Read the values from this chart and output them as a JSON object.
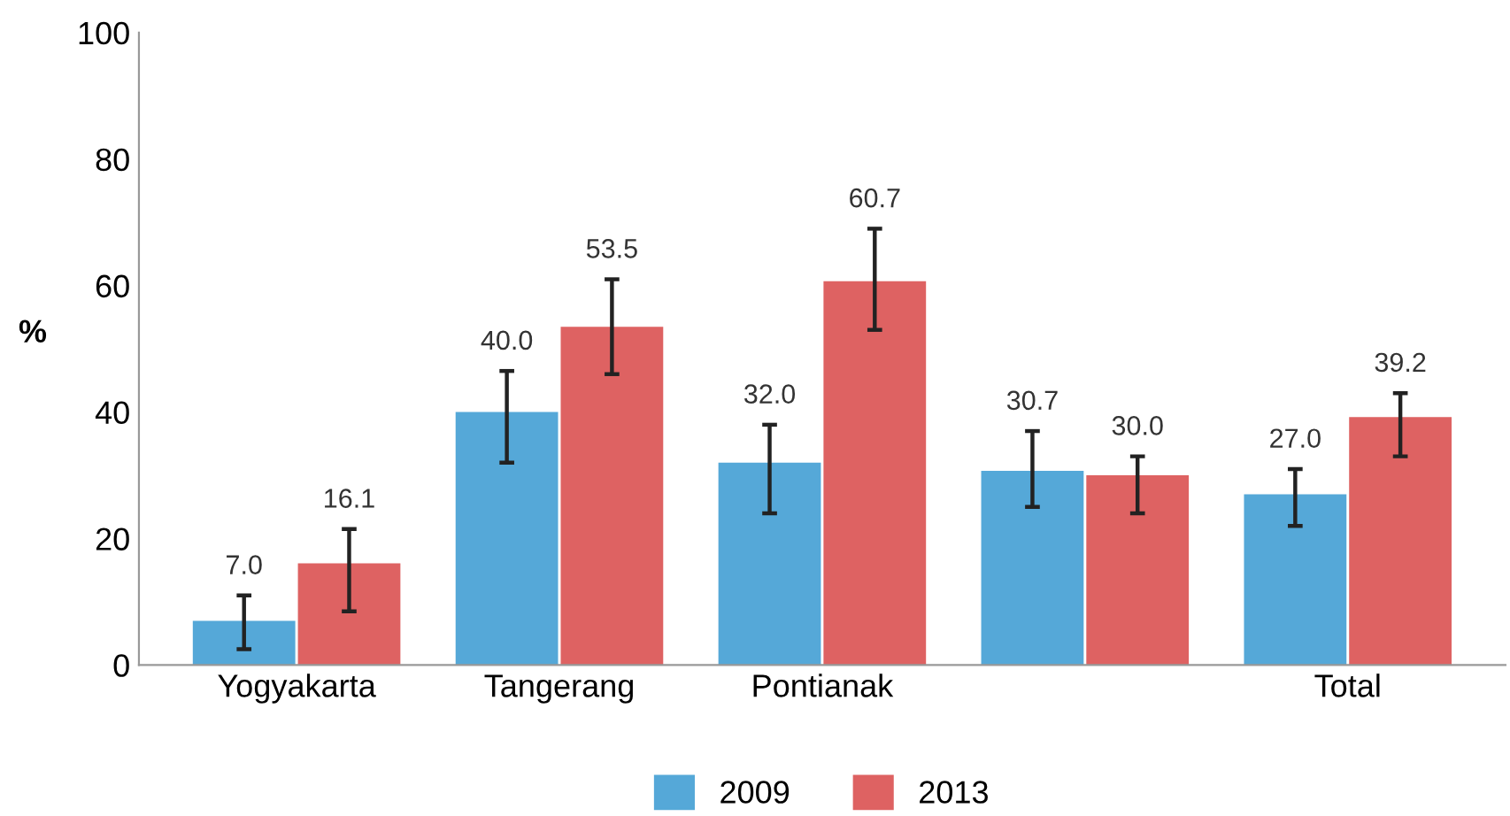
{
  "chart_data": {
    "type": "bar",
    "ylabel": "%",
    "categories": [
      "Yogyakarta",
      "Tangerang",
      "Pontianak",
      null,
      "Total"
    ],
    "series": [
      {
        "name": "2009",
        "color": "#55a8d8",
        "values": [
          7.0,
          40.0,
          32.0,
          30.7,
          27.0
        ],
        "value_labels": [
          "7.0",
          "40.0",
          "32.0",
          "30.7",
          "27.0"
        ],
        "errors": [
          [
            2.5,
            11.0
          ],
          [
            32,
            46.5
          ],
          [
            24,
            38
          ],
          [
            25,
            37
          ],
          [
            22,
            31
          ]
        ]
      },
      {
        "name": "2013",
        "color": "#de6262",
        "values": [
          16.1,
          53.5,
          60.7,
          30.0,
          39.2
        ],
        "value_labels": [
          "16.1",
          "53.5",
          "60.7",
          "30.0",
          "39.2"
        ],
        "errors": [
          [
            8.5,
            21.5
          ],
          [
            46,
            61
          ],
          [
            53,
            69
          ],
          [
            24,
            33
          ],
          [
            33,
            43
          ]
        ]
      }
    ],
    "ylim": [
      0,
      100
    ],
    "yticks": [
      0,
      20,
      40,
      60,
      80,
      100
    ],
    "grid": false,
    "legend": "bottom"
  }
}
